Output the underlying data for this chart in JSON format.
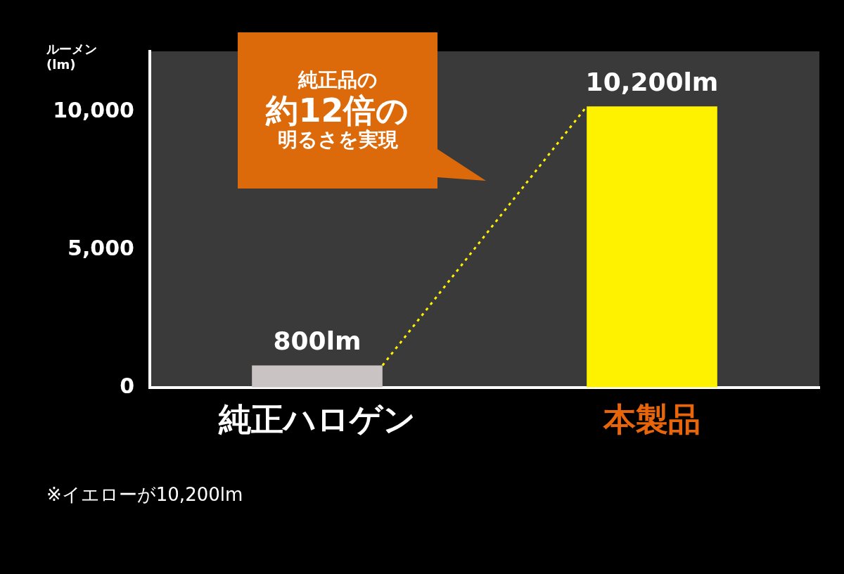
{
  "chart_data": {
    "type": "bar",
    "ylabel": "ルーメン\n(lm)",
    "categories": [
      "純正ハロゲン",
      "本製品"
    ],
    "values": [
      800,
      10200
    ],
    "colors": [
      "#c9c3c3",
      "#fff200"
    ],
    "value_labels": [
      "800lm",
      "10,200lm"
    ],
    "ylim": [
      0,
      12200
    ],
    "yticks": [
      {
        "value": 0,
        "label": "0"
      },
      {
        "value": 5000,
        "label": "5,000"
      },
      {
        "value": 10000,
        "label": "10,000"
      }
    ],
    "grid": false,
    "legend": false,
    "annotations": [
      "純正品の",
      "約12倍の",
      "明るさを実現",
      "※イエローが10,200lm"
    ]
  }
}
